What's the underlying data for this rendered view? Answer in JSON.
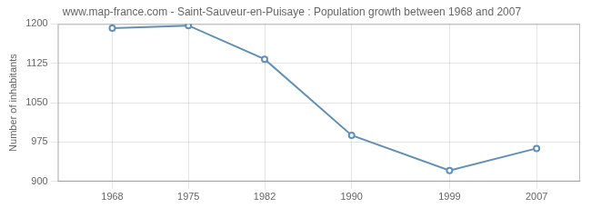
{
  "chart_data": {
    "type": "line",
    "title": "www.map-france.com - Saint-Sauveur-en-Puisaye : Population growth between 1968 and 2007",
    "ylabel": "Number of inhabitants",
    "x": [
      1968,
      1975,
      1982,
      1990,
      1999,
      2007
    ],
    "values": [
      1192,
      1197,
      1133,
      988,
      921,
      963
    ],
    "color": "#6090b8",
    "marker": "circle",
    "xlim": [
      1963,
      2011
    ],
    "xticks": [
      1968,
      1975,
      1982,
      1990,
      1999,
      2007
    ],
    "ylim": [
      900,
      1200
    ],
    "yticks": [
      900,
      975,
      1050,
      1125,
      1200
    ],
    "grid": true
  }
}
